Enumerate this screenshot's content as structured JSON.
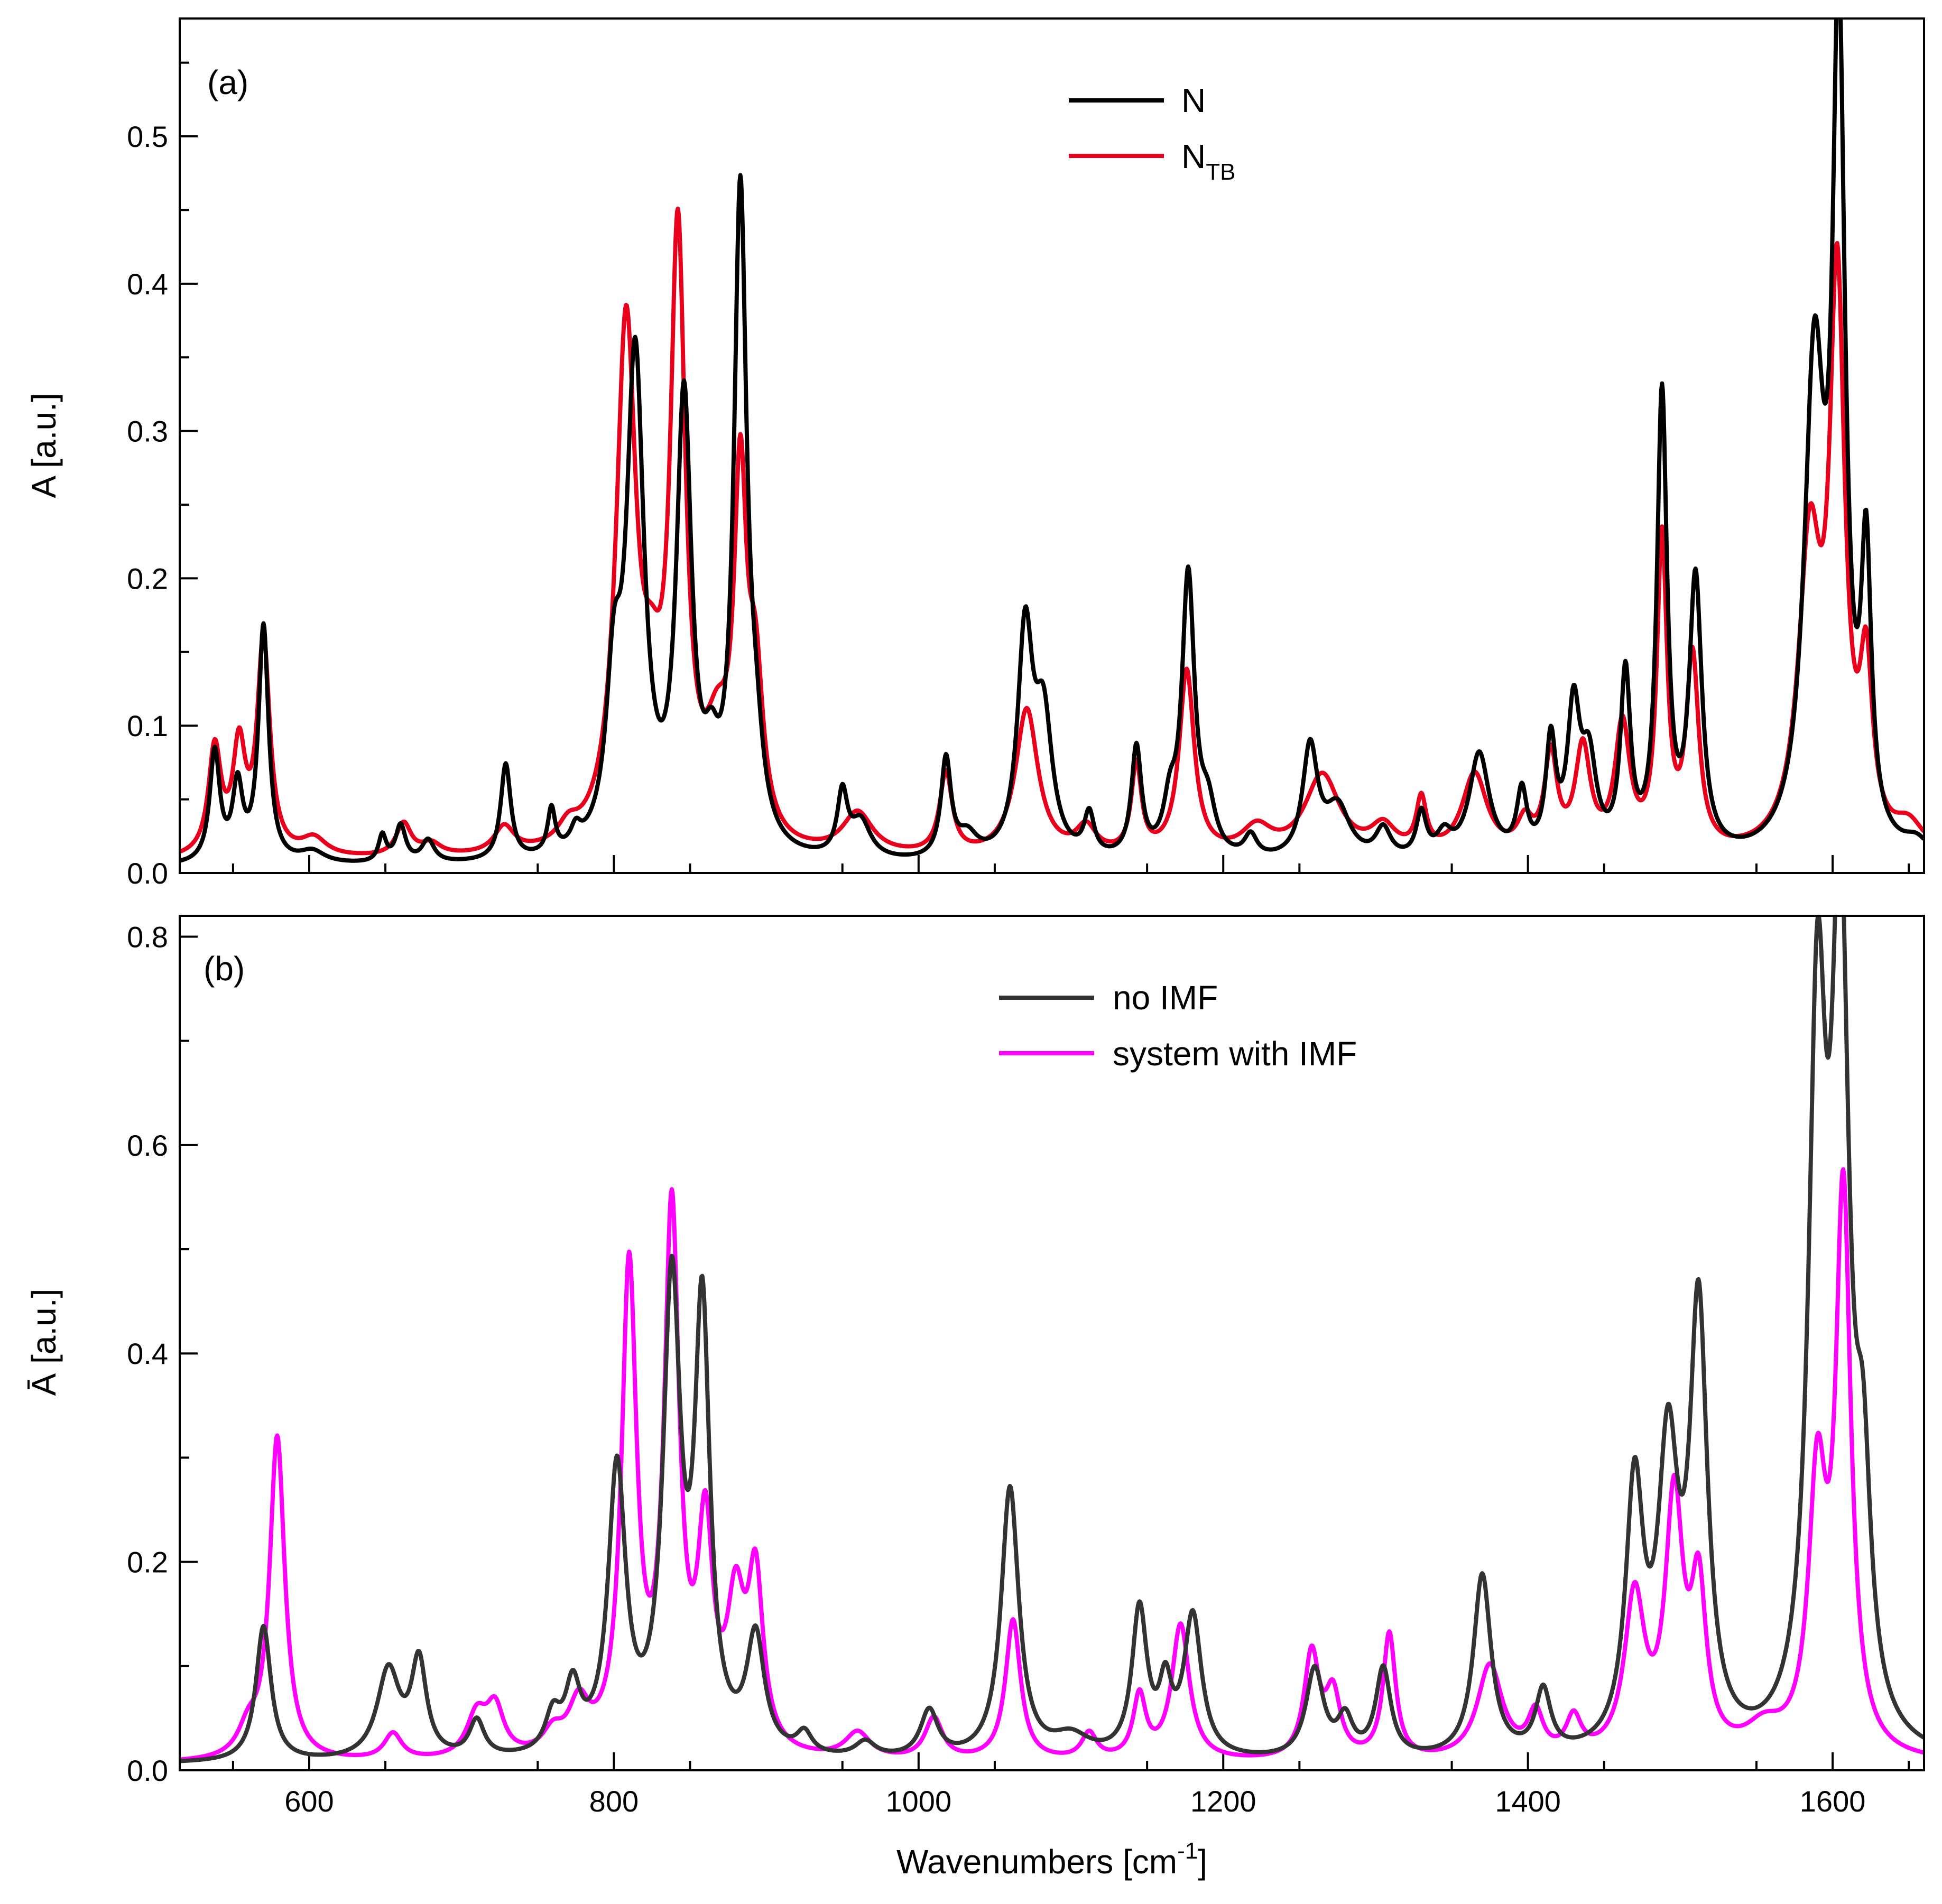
{
  "chart_data": [
    {
      "type": "line",
      "panel_label": "(a)",
      "xlabel": "Wavenumbers [cm",
      "xlabel_sup": "-1",
      "xlabel_tail": "]",
      "ylabel": "A [a.u.]",
      "xlim": [
        515,
        1660
      ],
      "ylim": [
        0.0,
        0.58
      ],
      "x_ticks": [
        600,
        800,
        1000,
        1200,
        1400,
        1600
      ],
      "y_ticks": [
        0.0,
        0.1,
        0.2,
        0.3,
        0.4,
        0.5
      ],
      "y_tick_labels": [
        "0.0",
        "0.1",
        "0.2",
        "0.3",
        "0.4",
        "0.5"
      ],
      "legend": "top-center",
      "series": [
        {
          "name": "N",
          "name_sub": "",
          "color": "#000000",
          "baseline": 0.004,
          "peaks": [
            [
              538,
              0.075,
              4
            ],
            [
              553,
              0.05,
              4
            ],
            [
              570,
              0.16,
              4
            ],
            [
              602,
              0.008,
              10
            ],
            [
              648,
              0.018,
              3
            ],
            [
              660,
              0.025,
              4
            ],
            [
              678,
              0.015,
              5
            ],
            [
              729,
              0.065,
              4
            ],
            [
              759,
              0.03,
              3
            ],
            [
              775,
              0.012,
              4
            ],
            [
              800,
              0.1,
              6
            ],
            [
              814,
              0.33,
              7
            ],
            [
              846,
              0.3,
              6
            ],
            [
              864,
              0.04,
              6
            ],
            [
              883,
              0.44,
              5
            ],
            [
              893,
              0.05,
              6
            ],
            [
              950,
              0.042,
              4
            ],
            [
              962,
              0.025,
              8
            ],
            [
              1018,
              0.067,
              4
            ],
            [
              1032,
              0.015,
              8
            ],
            [
              1070,
              0.15,
              6
            ],
            [
              1082,
              0.09,
              7
            ],
            [
              1112,
              0.028,
              4
            ],
            [
              1143,
              0.074,
              4
            ],
            [
              1165,
              0.03,
              5
            ],
            [
              1177,
              0.19,
              5
            ],
            [
              1190,
              0.03,
              6
            ],
            [
              1218,
              0.015,
              5
            ],
            [
              1257,
              0.075,
              6
            ],
            [
              1275,
              0.035,
              10
            ],
            [
              1305,
              0.02,
              6
            ],
            [
              1330,
              0.03,
              4
            ],
            [
              1345,
              0.015,
              6
            ],
            [
              1368,
              0.072,
              8
            ],
            [
              1396,
              0.042,
              4
            ],
            [
              1415,
              0.075,
              4
            ],
            [
              1430,
              0.095,
              5
            ],
            [
              1440,
              0.06,
              6
            ],
            [
              1464,
              0.12,
              4
            ],
            [
              1488,
              0.31,
              4
            ],
            [
              1510,
              0.185,
              5
            ],
            [
              1588,
              0.32,
              8
            ],
            [
              1604,
              0.54,
              5
            ],
            [
              1622,
              0.185,
              4
            ],
            [
              1655,
              0.01,
              10
            ]
          ]
        },
        {
          "name": "N",
          "name_sub": "TB",
          "color": "#e8001c",
          "baseline": 0.008,
          "peaks": [
            [
              538,
              0.072,
              5
            ],
            [
              554,
              0.07,
              5
            ],
            [
              570,
              0.145,
              5
            ],
            [
              603,
              0.012,
              10
            ],
            [
              662,
              0.022,
              6
            ],
            [
              680,
              0.008,
              8
            ],
            [
              728,
              0.018,
              8
            ],
            [
              770,
              0.012,
              8
            ],
            [
              808,
              0.35,
              8
            ],
            [
              825,
              0.06,
              8
            ],
            [
              842,
              0.4,
              6
            ],
            [
              868,
              0.06,
              10
            ],
            [
              883,
              0.23,
              5
            ],
            [
              893,
              0.1,
              6
            ],
            [
              960,
              0.028,
              12
            ],
            [
              1018,
              0.055,
              5
            ],
            [
              1071,
              0.1,
              9
            ],
            [
              1110,
              0.018,
              8
            ],
            [
              1143,
              0.06,
              4
            ],
            [
              1176,
              0.125,
              6
            ],
            [
              1222,
              0.018,
              12
            ],
            [
              1265,
              0.055,
              14
            ],
            [
              1305,
              0.018,
              10
            ],
            [
              1330,
              0.035,
              4
            ],
            [
              1365,
              0.055,
              10
            ],
            [
              1398,
              0.02,
              6
            ],
            [
              1415,
              0.065,
              5
            ],
            [
              1436,
              0.07,
              6
            ],
            [
              1462,
              0.085,
              6
            ],
            [
              1488,
              0.21,
              4
            ],
            [
              1508,
              0.13,
              5
            ],
            [
              1585,
              0.2,
              9
            ],
            [
              1603,
              0.37,
              6
            ],
            [
              1622,
              0.11,
              5
            ],
            [
              1650,
              0.018,
              12
            ]
          ]
        }
      ]
    },
    {
      "type": "line",
      "panel_label": "(b)",
      "xlabel": "Wavenumbers [cm",
      "xlabel_sup": "-1",
      "xlabel_tail": "]",
      "ylabel": "Ā [a.u.]",
      "xlim": [
        515,
        1660
      ],
      "ylim": [
        0.0,
        0.82
      ],
      "x_ticks": [
        600,
        800,
        1000,
        1200,
        1400,
        1600
      ],
      "x_tick_labels": [
        "600",
        "800",
        "1000",
        "1200",
        "1400",
        "1600"
      ],
      "y_ticks": [
        0.0,
        0.2,
        0.4,
        0.6,
        0.8
      ],
      "y_tick_labels": [
        "0.0",
        "0.2",
        "0.4",
        "0.6",
        "0.8"
      ],
      "legend": "top-center",
      "series": [
        {
          "name": "no IMF",
          "color": "#333333",
          "baseline": 0.006,
          "peaks": [
            [
              570,
              0.13,
              6
            ],
            [
              652,
              0.085,
              9
            ],
            [
              672,
              0.09,
              6
            ],
            [
              710,
              0.035,
              6
            ],
            [
              760,
              0.035,
              6
            ],
            [
              773,
              0.06,
              6
            ],
            [
              802,
              0.27,
              7
            ],
            [
              838,
              0.44,
              7
            ],
            [
              858,
              0.41,
              6
            ],
            [
              893,
              0.11,
              7
            ],
            [
              925,
              0.02,
              6
            ],
            [
              965,
              0.015,
              8
            ],
            [
              1007,
              0.045,
              7
            ],
            [
              1060,
              0.26,
              7
            ],
            [
              1100,
              0.02,
              15
            ],
            [
              1145,
              0.14,
              6
            ],
            [
              1162,
              0.06,
              5
            ],
            [
              1180,
              0.135,
              7
            ],
            [
              1260,
              0.085,
              7
            ],
            [
              1280,
              0.035,
              6
            ],
            [
              1305,
              0.085,
              6
            ],
            [
              1370,
              0.175,
              7
            ],
            [
              1410,
              0.06,
              6
            ],
            [
              1470,
              0.245,
              7
            ],
            [
              1492,
              0.27,
              8
            ],
            [
              1512,
              0.41,
              7
            ],
            [
              1590,
              0.66,
              7
            ],
            [
              1605,
              0.76,
              7
            ],
            [
              1620,
              0.2,
              6
            ]
          ]
        },
        {
          "name": "system with IMF",
          "color": "#ff00ff",
          "baseline": 0.006,
          "peaks": [
            [
              560,
              0.025,
              8
            ],
            [
              579,
              0.31,
              6
            ],
            [
              655,
              0.025,
              7
            ],
            [
              710,
              0.04,
              8
            ],
            [
              722,
              0.045,
              7
            ],
            [
              760,
              0.02,
              8
            ],
            [
              777,
              0.045,
              8
            ],
            [
              810,
              0.46,
              6
            ],
            [
              838,
              0.51,
              6
            ],
            [
              860,
              0.2,
              6
            ],
            [
              880,
              0.13,
              7
            ],
            [
              893,
              0.16,
              6
            ],
            [
              960,
              0.025,
              10
            ],
            [
              1010,
              0.04,
              7
            ],
            [
              1062,
              0.135,
              6
            ],
            [
              1112,
              0.025,
              6
            ],
            [
              1145,
              0.06,
              5
            ],
            [
              1172,
              0.13,
              7
            ],
            [
              1258,
              0.1,
              6
            ],
            [
              1272,
              0.06,
              6
            ],
            [
              1309,
              0.12,
              5
            ],
            [
              1375,
              0.09,
              10
            ],
            [
              1405,
              0.04,
              6
            ],
            [
              1430,
              0.035,
              6
            ],
            [
              1470,
              0.15,
              8
            ],
            [
              1496,
              0.24,
              7
            ],
            [
              1512,
              0.15,
              6
            ],
            [
              1555,
              0.025,
              15
            ],
            [
              1590,
              0.25,
              7
            ],
            [
              1607,
              0.53,
              6
            ]
          ]
        }
      ]
    }
  ]
}
